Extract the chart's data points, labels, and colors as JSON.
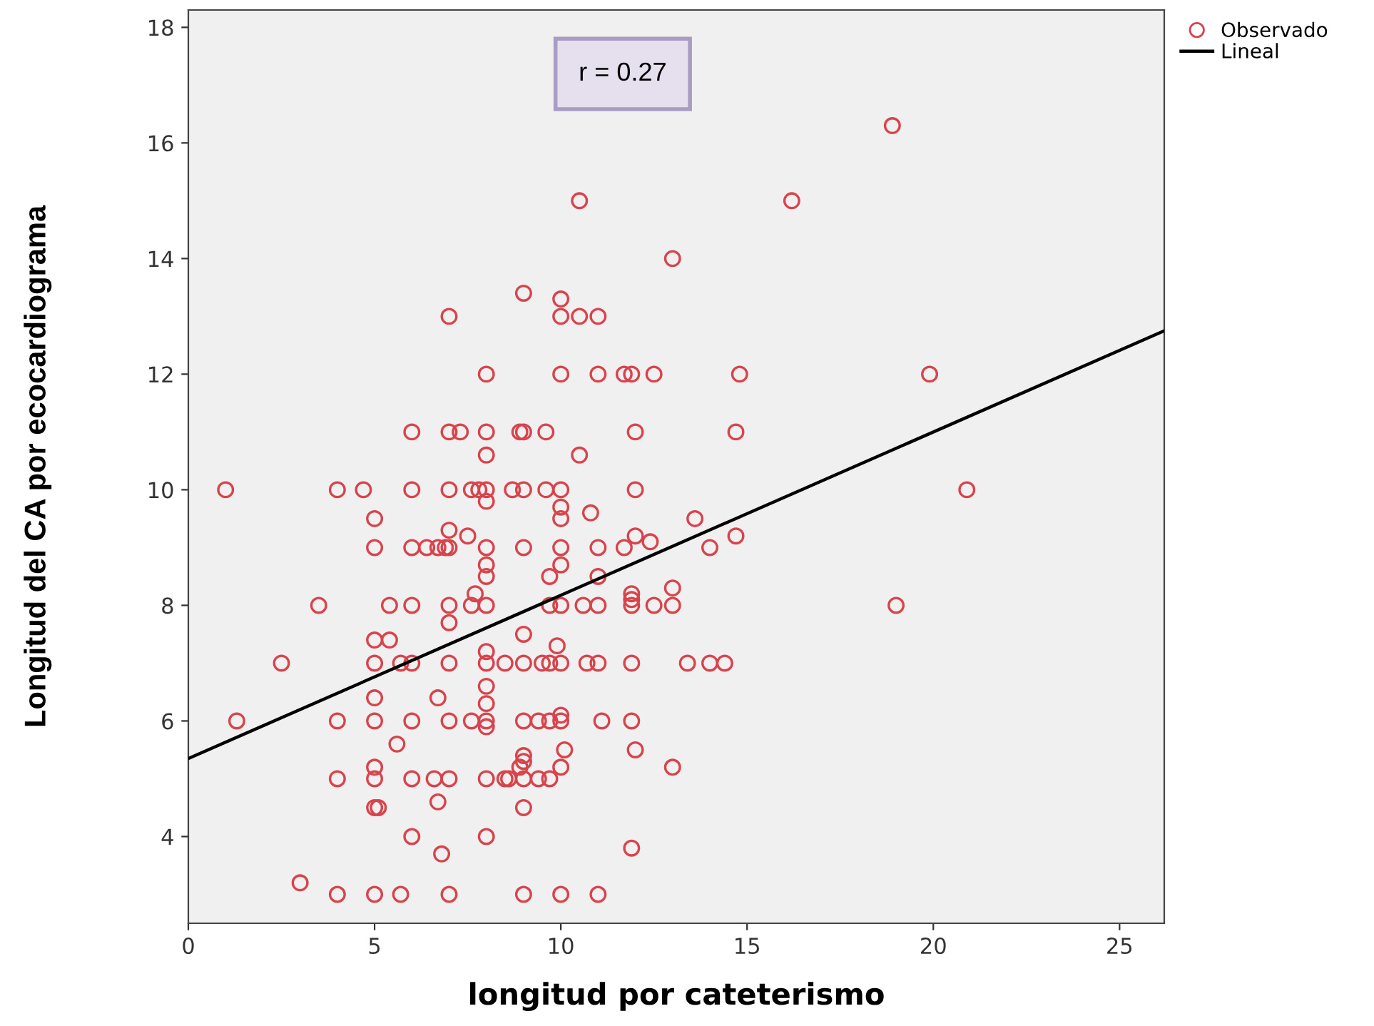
{
  "chart_data": {
    "type": "scatter",
    "xlabel": "longitud por cateterismo",
    "ylabel": "Longitud del CA por ecocardiograma",
    "annotations": [
      "r = 0.27"
    ],
    "xlim": [
      0,
      26.2
    ],
    "ylim": [
      2.5,
      18.3
    ],
    "xticks": [
      0,
      5,
      10,
      15,
      20,
      25
    ],
    "yticks": [
      4,
      6,
      8,
      10,
      12,
      14,
      16,
      18
    ],
    "grid": false,
    "legend": "top right",
    "series": [
      {
        "name": "Observado",
        "marker": "circle",
        "color": "#d9434c",
        "x": [
          18.9,
          16.2,
          10.5,
          13.0,
          9.0,
          10.0,
          7.0,
          10.0,
          10.5,
          11.0,
          8.0,
          10.0,
          11.0,
          11.7,
          11.9,
          12.5,
          14.8,
          19.9,
          6.0,
          7.0,
          7.3,
          8.0,
          8.9,
          9.0,
          9.6,
          12.0,
          14.7,
          8.0,
          10.5,
          1.0,
          4.0,
          4.7,
          6.0,
          7.0,
          7.6,
          7.8,
          8.0,
          8.7,
          9.0,
          9.6,
          10.0,
          12.0,
          20.9,
          8.0,
          10.0,
          5.0,
          10.0,
          10.8,
          13.6,
          7.0,
          7.5,
          5.0,
          6.0,
          6.4,
          6.7,
          6.9,
          7.0,
          8.0,
          9.0,
          10.0,
          11.0,
          11.7,
          14.0,
          12.4,
          12.0,
          14.7,
          8.0,
          10.0,
          8.0,
          9.7,
          11.0,
          13.0,
          7.7,
          11.9,
          11.9,
          3.5,
          5.4,
          6.0,
          7.0,
          7.6,
          8.0,
          9.7,
          10.0,
          10.6,
          11.0,
          11.9,
          12.5,
          13.0,
          19.0,
          7.0,
          9.0,
          5.0,
          5.4,
          9.9,
          8.0,
          2.5,
          5.0,
          5.7,
          6.0,
          7.0,
          8.0,
          8.5,
          9.0,
          9.5,
          9.7,
          10.0,
          10.7,
          11.0,
          11.9,
          13.4,
          14.0,
          14.4,
          8.0,
          5.0,
          6.7,
          8.0,
          10.0,
          1.3,
          4.0,
          5.0,
          6.0,
          7.0,
          7.6,
          8.0,
          9.0,
          9.4,
          9.7,
          10.0,
          11.1,
          11.9,
          8.0,
          5.6,
          12.0,
          10.1,
          9.0,
          5.0,
          9.0,
          13.0,
          10.0,
          8.9,
          4.0,
          5.0,
          6.0,
          6.6,
          7.0,
          8.0,
          8.5,
          8.6,
          9.0,
          9.4,
          9.7,
          5.0,
          5.1,
          6.7,
          9.0,
          6.0,
          8.0,
          11.9,
          6.8,
          3.0,
          4.0,
          5.0,
          5.7,
          7.0,
          9.0,
          10.0,
          11.0
        ],
        "values": [
          16.3,
          15.0,
          15.0,
          14.0,
          13.4,
          13.3,
          13.0,
          13.0,
          13.0,
          13.0,
          12.0,
          12.0,
          12.0,
          12.0,
          12.0,
          12.0,
          12.0,
          12.0,
          11.0,
          11.0,
          11.0,
          11.0,
          11.0,
          11.0,
          11.0,
          11.0,
          11.0,
          10.6,
          10.6,
          10.0,
          10.0,
          10.0,
          10.0,
          10.0,
          10.0,
          10.0,
          10.0,
          10.0,
          10.0,
          10.0,
          10.0,
          10.0,
          10.0,
          9.8,
          9.7,
          9.5,
          9.5,
          9.6,
          9.5,
          9.3,
          9.2,
          9.0,
          9.0,
          9.0,
          9.0,
          9.0,
          9.0,
          9.0,
          9.0,
          9.0,
          9.0,
          9.0,
          9.0,
          9.1,
          9.2,
          9.2,
          8.7,
          8.7,
          8.5,
          8.5,
          8.5,
          8.3,
          8.2,
          8.2,
          8.1,
          8.0,
          8.0,
          8.0,
          8.0,
          8.0,
          8.0,
          8.0,
          8.0,
          8.0,
          8.0,
          8.0,
          8.0,
          8.0,
          8.0,
          7.7,
          7.5,
          7.4,
          7.4,
          7.3,
          7.2,
          7.0,
          7.0,
          7.0,
          7.0,
          7.0,
          7.0,
          7.0,
          7.0,
          7.0,
          7.0,
          7.0,
          7.0,
          7.0,
          7.0,
          7.0,
          7.0,
          7.0,
          6.6,
          6.4,
          6.4,
          6.3,
          6.1,
          6.0,
          6.0,
          6.0,
          6.0,
          6.0,
          6.0,
          6.0,
          6.0,
          6.0,
          6.0,
          6.0,
          6.0,
          6.0,
          5.9,
          5.6,
          5.5,
          5.5,
          5.4,
          5.2,
          5.3,
          5.2,
          5.2,
          5.2,
          5.0,
          5.0,
          5.0,
          5.0,
          5.0,
          5.0,
          5.0,
          5.0,
          5.0,
          5.0,
          5.0,
          4.5,
          4.5,
          4.6,
          4.5,
          4.0,
          4.0,
          3.8,
          3.7,
          3.2,
          3.0,
          3.0,
          3.0,
          3.0,
          3.0,
          3.0,
          3.0
        ]
      },
      {
        "name": "Lineal",
        "type": "line",
        "color": "#000000",
        "x": [
          0,
          26.2
        ],
        "values": [
          5.35,
          12.75
        ]
      }
    ]
  }
}
